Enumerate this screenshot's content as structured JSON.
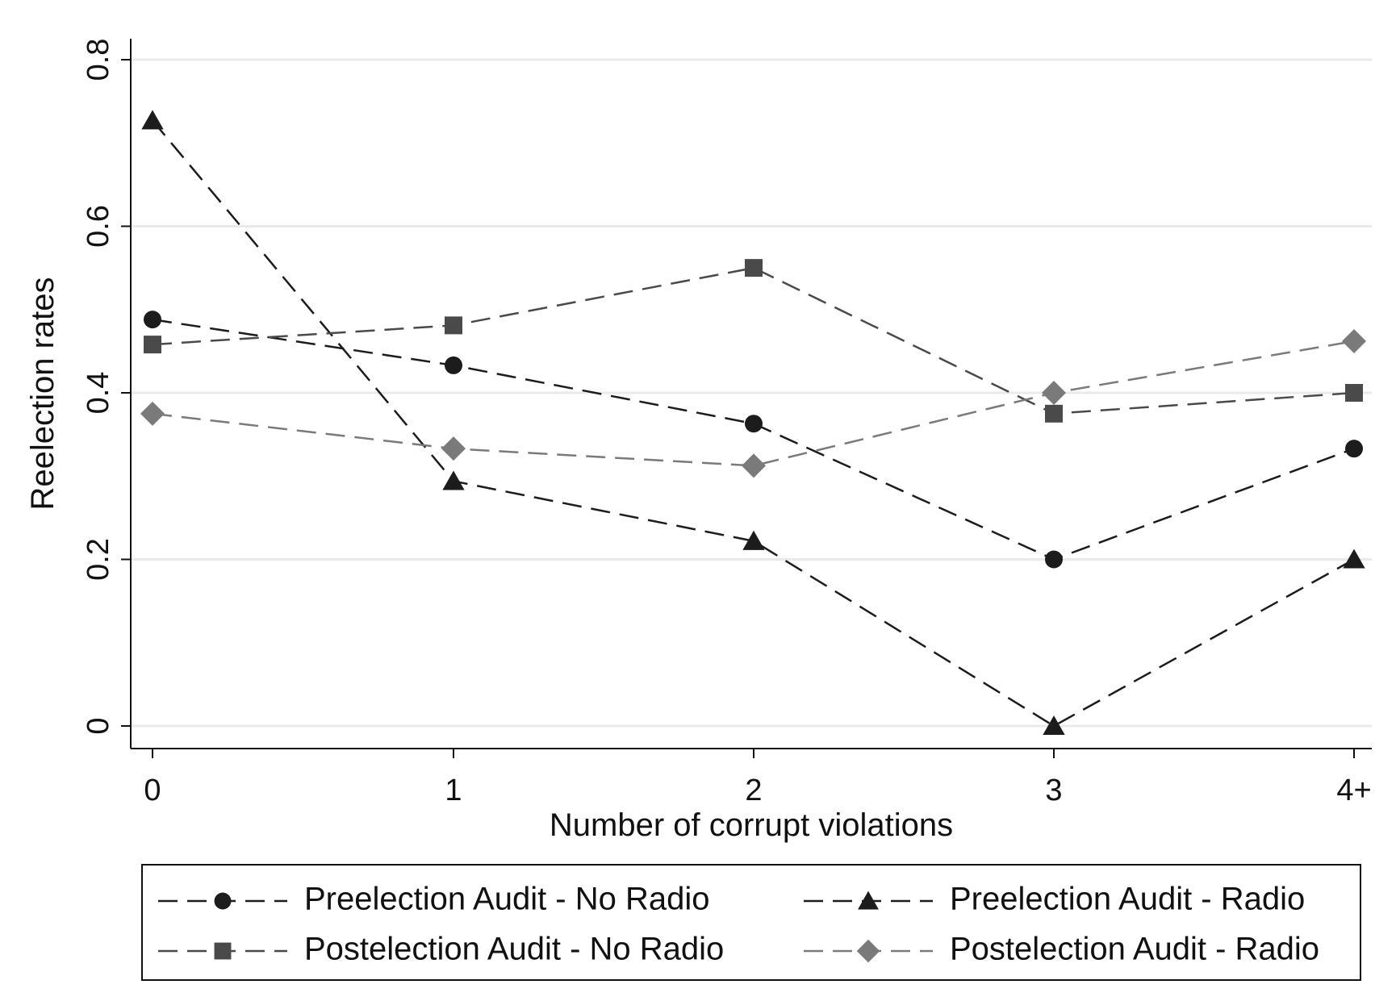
{
  "chart_data": {
    "type": "line",
    "xlabel": "Number of corrupt violations",
    "ylabel": "Reelection rates",
    "categories": [
      "0",
      "1",
      "2",
      "3",
      "4+"
    ],
    "ylim": [
      0,
      0.8
    ],
    "yticks": [
      {
        "value": 0,
        "label": "0"
      },
      {
        "value": 0.2,
        "label": "0.2"
      },
      {
        "value": 0.4,
        "label": "0.4"
      },
      {
        "value": 0.6,
        "label": "0.6"
      },
      {
        "value": 0.8,
        "label": "0.8"
      }
    ],
    "grid": true,
    "legend_position": "bottom",
    "series": [
      {
        "name": "Preelection Audit - No Radio",
        "marker": "circle",
        "color": "#1c1c1c",
        "values": [
          0.488,
          0.433,
          0.363,
          0.2,
          0.333
        ]
      },
      {
        "name": "Preelection Audit - Radio",
        "marker": "triangle",
        "color": "#1c1c1c",
        "values": [
          0.727,
          0.294,
          0.222,
          0.0,
          0.2
        ]
      },
      {
        "name": "Postelection Audit - No Radio",
        "marker": "square",
        "color": "#4a4a4a",
        "values": [
          0.458,
          0.481,
          0.55,
          0.375,
          0.4
        ]
      },
      {
        "name": "Postelection Audit - Radio",
        "marker": "diamond",
        "color": "#7a7a7a",
        "values": [
          0.375,
          0.333,
          0.3125,
          0.4,
          0.462
        ]
      }
    ]
  }
}
